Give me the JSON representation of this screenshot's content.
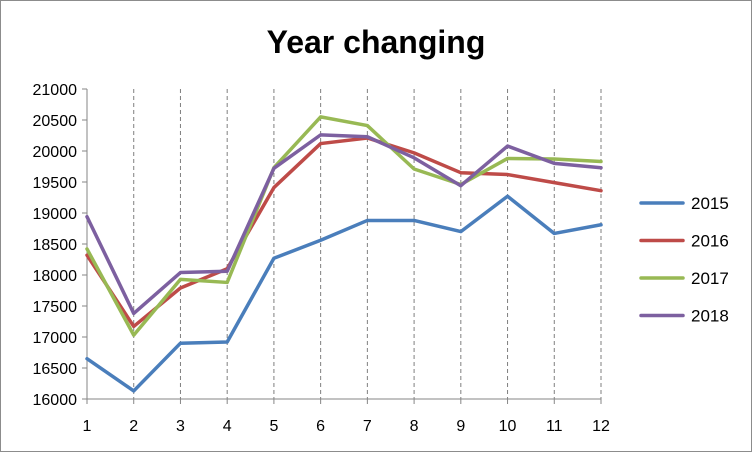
{
  "chart_data": {
    "type": "line",
    "title": "Year changing",
    "xlabel": "",
    "ylabel": "",
    "categories": [
      "1",
      "2",
      "3",
      "4",
      "5",
      "6",
      "7",
      "8",
      "9",
      "10",
      "11",
      "12"
    ],
    "ylim": [
      16000,
      21000
    ],
    "ytick_step": 500,
    "yticks": [
      "16000",
      "16500",
      "17000",
      "17500",
      "18000",
      "18500",
      "19000",
      "19500",
      "20000",
      "20500",
      "21000"
    ],
    "grid": "vertical dashed",
    "legend_position": "right",
    "series": [
      {
        "name": "2015",
        "color": "#4a7ebb",
        "values": [
          16650,
          16130,
          16900,
          16920,
          18270,
          18560,
          18880,
          18880,
          18700,
          19270,
          18670,
          18810
        ]
      },
      {
        "name": "2016",
        "color": "#be4b48",
        "values": [
          18320,
          17170,
          17790,
          18100,
          19410,
          20120,
          20210,
          19970,
          19650,
          19620,
          19490,
          19360
        ]
      },
      {
        "name": "2017",
        "color": "#98b954",
        "values": [
          18420,
          17030,
          17930,
          17880,
          19730,
          20550,
          20410,
          19710,
          19460,
          19880,
          19870,
          19830
        ]
      },
      {
        "name": "2018",
        "color": "#7d60a0",
        "values": [
          18940,
          17380,
          18040,
          18060,
          19720,
          20260,
          20230,
          19890,
          19440,
          20080,
          19800,
          19730
        ]
      }
    ]
  }
}
